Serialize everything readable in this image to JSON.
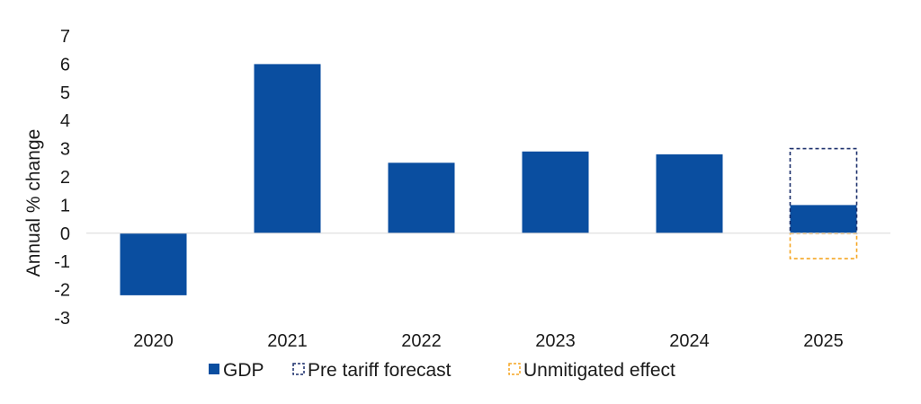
{
  "chart_data": {
    "type": "bar",
    "ylabel": "Annual % change",
    "xlabel": "",
    "ylim": [
      -3,
      7
    ],
    "yticks": [
      7,
      6,
      5,
      4,
      3,
      2,
      1,
      0,
      -1,
      -2,
      -3
    ],
    "ytick_labels": [
      "7",
      "6",
      "5",
      "4",
      "3",
      "2",
      "1",
      "0",
      "-1",
      "-2",
      "-3"
    ],
    "categories": [
      "2020",
      "2021",
      "2022",
      "2023",
      "2024",
      "2025"
    ],
    "series": [
      {
        "name": "GDP",
        "style": "solid",
        "color": "#0a4ea0",
        "values": [
          -2.2,
          6.0,
          2.5,
          2.9,
          2.8,
          1.0
        ]
      },
      {
        "name": "Pre tariff forecast",
        "style": "dashed",
        "color": "#1b2f6b",
        "values": [
          null,
          null,
          null,
          null,
          null,
          3.0
        ]
      },
      {
        "name": "Unmitigated effect",
        "style": "dashed",
        "color": "#f5a623",
        "values": [
          null,
          null,
          null,
          null,
          null,
          -0.9
        ]
      }
    ],
    "legend": {
      "position": "bottom"
    },
    "grid": false
  }
}
